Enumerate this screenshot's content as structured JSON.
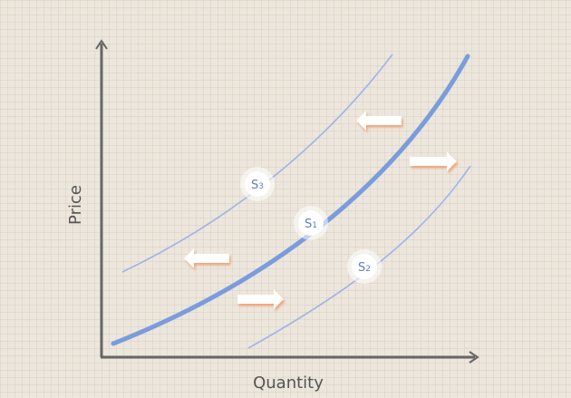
{
  "axes": {
    "x_label": "Quantity",
    "y_label": "Price"
  },
  "curves": [
    {
      "id": "s1",
      "label_main": "S",
      "label_sub": "1",
      "role": "original-supply"
    },
    {
      "id": "s2",
      "label_main": "S",
      "label_sub": "2",
      "role": "shifted-right"
    },
    {
      "id": "s3",
      "label_main": "S",
      "label_sub": "3",
      "role": "shifted-left"
    }
  ],
  "arrows": [
    {
      "id": "upper-left",
      "direction": "left"
    },
    {
      "id": "upper-right",
      "direction": "right"
    },
    {
      "id": "lower-left",
      "direction": "left"
    },
    {
      "id": "lower-right",
      "direction": "right"
    }
  ],
  "colors": {
    "background": "#ece6dc",
    "axis": "#666666",
    "curve_main": "#7b9cdc",
    "curve_shift": "#9db4e6",
    "arrow_body": "#ffffff",
    "arrow_shadow": "#f0a47a",
    "label_text": "#5b7fc4"
  }
}
